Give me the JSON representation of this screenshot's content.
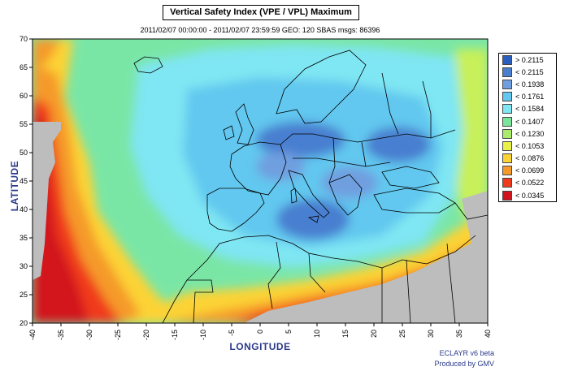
{
  "header": {
    "title": "Vertical Safety Index (VPE / VPL) Maximum",
    "subtitle": "2011/02/07 00:00:00 - 2011/02/07 23:59:59  GEO: 120  SBAS  msgs: 86396"
  },
  "axes": {
    "xlabel": "LONGITUDE",
    "ylabel": "LATITUDE",
    "xticks": [
      "-40",
      "-35",
      "-30",
      "-25",
      "-20",
      "-15",
      "-10",
      "-5",
      "0",
      "5",
      "10",
      "15",
      "20",
      "25",
      "30",
      "35",
      "40"
    ],
    "yticks": [
      "70",
      "65",
      "60",
      "55",
      "50",
      "45",
      "40",
      "35",
      "30",
      "25",
      "20"
    ]
  },
  "legend": [
    {
      "label": "> 0.2115",
      "color": "#2b5fbf"
    },
    {
      "label": "< 0.2115",
      "color": "#4a7fd0"
    },
    {
      "label": "< 0.1938",
      "color": "#6f9fe0"
    },
    {
      "label": "< 0.1761",
      "color": "#62c8ef"
    },
    {
      "label": "< 0.1584",
      "color": "#7fe6f3"
    },
    {
      "label": "< 0.1407",
      "color": "#79e59a"
    },
    {
      "label": "< 0.1230",
      "color": "#a8ec6a"
    },
    {
      "label": "< 0.1053",
      "color": "#e8f14a"
    },
    {
      "label": "< 0.0876",
      "color": "#fcd335"
    },
    {
      "label": "< 0.0699",
      "color": "#f59a2a"
    },
    {
      "label": "< 0.0522",
      "color": "#f03a1e"
    },
    {
      "label": "< 0.0345",
      "color": "#d2141e"
    }
  ],
  "footer": {
    "line1": "ECLAYR v6 beta",
    "line2": "Produced by GMV"
  },
  "map_colors": {
    "land_nodata": "#bdbdbd",
    "frame": "#000000"
  }
}
